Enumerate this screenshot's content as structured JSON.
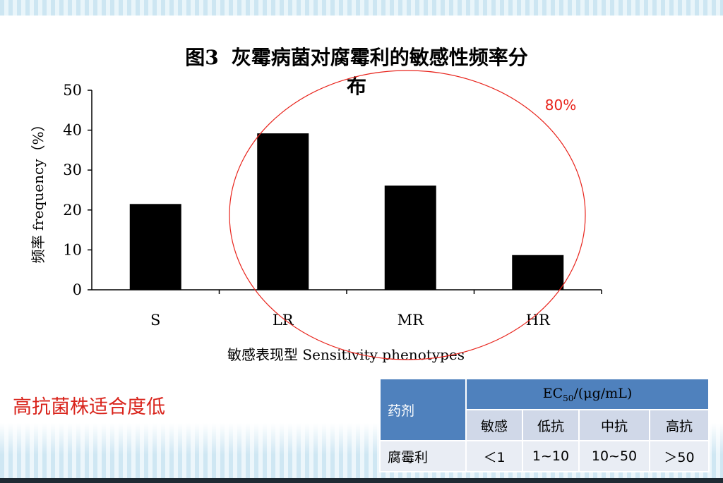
{
  "chart_data": {
    "type": "bar",
    "title_prefix": "图",
    "title_num": "3",
    "title_text": "灰霉病菌对腐霉利的敏感性频率分",
    "title_line2": "布",
    "ylabel": "频率 frequency（%）",
    "xlabel": "敏感表现型 Sensitivity phenotypes",
    "categories": [
      "S",
      "LR",
      "MR",
      "HR"
    ],
    "values": [
      21.5,
      39.2,
      26.1,
      8.7
    ],
    "ylim": [
      0,
      50
    ],
    "yticks": [
      "0",
      "10",
      "20",
      "30",
      "40",
      "50"
    ],
    "bar_color": "#000000",
    "annotation": {
      "text": "80%",
      "color": "#e8231b"
    },
    "ellipse_color": "#e8231b"
  },
  "note": {
    "text": "高抗菌株适合度低",
    "color": "#d9241c"
  },
  "table": {
    "agent_header": "药剂",
    "ec_prefix": "EC",
    "ec_sub": "50",
    "ec_suffix": "/(μg/mL)",
    "categories": [
      "敏感",
      "低抗",
      "中抗",
      "高抗"
    ],
    "agent": "腐霉利",
    "values": [
      "＜1",
      "1~10",
      "10~50",
      "＞50"
    ],
    "header_color": "#4f81bd"
  }
}
